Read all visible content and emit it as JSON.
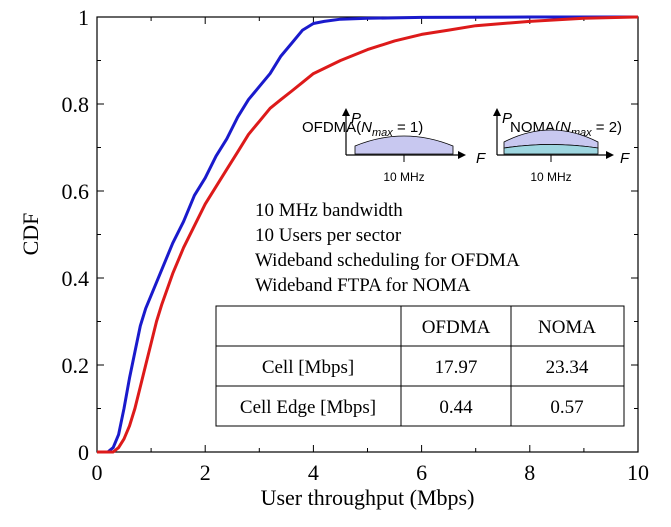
{
  "chart_data": {
    "type": "line",
    "xlabel": "User throughput (Mbps)",
    "ylabel": "CDF",
    "xlim": [
      0,
      10
    ],
    "ylim": [
      0,
      1
    ],
    "x_ticks": [
      "0",
      "2",
      "4",
      "6",
      "8",
      "10"
    ],
    "y_ticks": [
      "0",
      "0.2",
      "0.4",
      "0.6",
      "0.8",
      "1"
    ],
    "grid": false,
    "series": [
      {
        "name": "OFDMA",
        "color": "#1a1acc",
        "points": [
          [
            0,
            0
          ],
          [
            0.2,
            0.0
          ],
          [
            0.3,
            0.01
          ],
          [
            0.4,
            0.04
          ],
          [
            0.5,
            0.1
          ],
          [
            0.6,
            0.17
          ],
          [
            0.7,
            0.23
          ],
          [
            0.8,
            0.29
          ],
          [
            0.9,
            0.33
          ],
          [
            1.0,
            0.36
          ],
          [
            1.2,
            0.42
          ],
          [
            1.4,
            0.48
          ],
          [
            1.6,
            0.53
          ],
          [
            1.8,
            0.59
          ],
          [
            2.0,
            0.63
          ],
          [
            2.2,
            0.68
          ],
          [
            2.4,
            0.72
          ],
          [
            2.6,
            0.77
          ],
          [
            2.8,
            0.81
          ],
          [
            3.0,
            0.84
          ],
          [
            3.2,
            0.87
          ],
          [
            3.4,
            0.91
          ],
          [
            3.6,
            0.94
          ],
          [
            3.8,
            0.97
          ],
          [
            4.0,
            0.985
          ],
          [
            4.2,
            0.99
          ],
          [
            4.5,
            0.995
          ],
          [
            5.0,
            0.997
          ],
          [
            6.0,
            0.999
          ],
          [
            8.0,
            1.0
          ],
          [
            10.0,
            1.0
          ]
        ]
      },
      {
        "name": "NOMA",
        "color": "#dd1a1a",
        "points": [
          [
            0,
            0
          ],
          [
            0.3,
            0.0
          ],
          [
            0.4,
            0.01
          ],
          [
            0.5,
            0.03
          ],
          [
            0.6,
            0.06
          ],
          [
            0.7,
            0.1
          ],
          [
            0.8,
            0.15
          ],
          [
            0.9,
            0.2
          ],
          [
            1.0,
            0.25
          ],
          [
            1.1,
            0.3
          ],
          [
            1.2,
            0.34
          ],
          [
            1.4,
            0.41
          ],
          [
            1.6,
            0.47
          ],
          [
            1.8,
            0.52
          ],
          [
            2.0,
            0.57
          ],
          [
            2.2,
            0.61
          ],
          [
            2.4,
            0.65
          ],
          [
            2.6,
            0.69
          ],
          [
            2.8,
            0.73
          ],
          [
            3.0,
            0.76
          ],
          [
            3.2,
            0.79
          ],
          [
            3.4,
            0.81
          ],
          [
            3.6,
            0.83
          ],
          [
            3.8,
            0.85
          ],
          [
            4.0,
            0.87
          ],
          [
            4.5,
            0.9
          ],
          [
            5.0,
            0.925
          ],
          [
            5.5,
            0.945
          ],
          [
            6.0,
            0.96
          ],
          [
            6.5,
            0.97
          ],
          [
            7.0,
            0.98
          ],
          [
            7.5,
            0.985
          ],
          [
            8.0,
            0.99
          ],
          [
            9.0,
            0.997
          ],
          [
            10.0,
            1.0
          ]
        ]
      }
    ],
    "annotations": [
      "10 MHz bandwidth",
      "10 Users per sector",
      "Wideband scheduling for OFDMA",
      "Wideband FTPA for NOMA"
    ],
    "inset": {
      "ofdma_label": "OFDMA(",
      "ofdma_n": "N",
      "ofdma_sub": "max",
      "ofdma_tail": " = 1)",
      "noma_label": "NOMA(",
      "noma_n": "N",
      "noma_sub": "max",
      "noma_tail": " = 2)",
      "power_axis": "P",
      "freq_axis": "F",
      "bandwidth": "10 MHz",
      "ofdma_fill": "#c8c8f0",
      "noma_fill_top": "#c8c8f0",
      "noma_fill_bottom": "#9ed6e0"
    },
    "table": {
      "headers": [
        "",
        "OFDMA",
        "NOMA"
      ],
      "rows": [
        [
          "Cell [Mbps]",
          "17.97",
          "23.34"
        ],
        [
          "Cell Edge [Mbps]",
          "0.44",
          "0.57"
        ]
      ]
    }
  }
}
